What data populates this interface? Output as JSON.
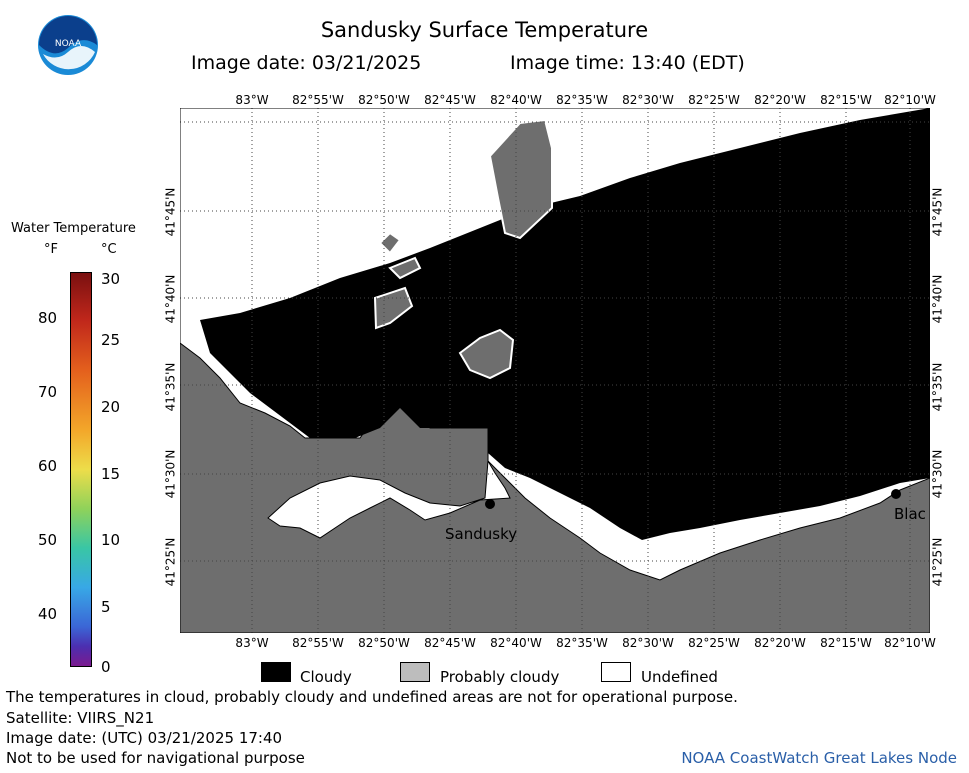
{
  "map": {
    "title": "Sandusky Surface Temperature",
    "image_date_label": "Image date: 03/21/2025",
    "image_time_label": "Image time: 13:40 (EDT)",
    "longitude_ticks": [
      "83°W",
      "82°55'W",
      "82°50'W",
      "82°45'W",
      "82°40'W",
      "82°35'W",
      "82°30'W",
      "82°25'W",
      "82°20'W",
      "82°15'W",
      "82°10'W"
    ],
    "latitude_ticks": [
      "41°45'N",
      "41°40'N",
      "41°35'N",
      "41°30'N",
      "41°25'N"
    ],
    "places": [
      {
        "name": "Sandusky"
      },
      {
        "name": "Blac"
      }
    ],
    "colors": {
      "cloudy": "#000000",
      "probably_cloudy": "#6e6e6e",
      "undefined": "#ffffff",
      "land": "#6e6e6e"
    }
  },
  "colorbar": {
    "title": "Water Temperature",
    "unit_f": "°F",
    "unit_c": "°C",
    "f_ticks": [
      "80",
      "70",
      "60",
      "50",
      "40"
    ],
    "c_ticks": [
      "30",
      "25",
      "20",
      "15",
      "10",
      "5",
      "0"
    ],
    "range_c": [
      0,
      30
    ]
  },
  "key": {
    "cloudy": "Cloudy",
    "probably_cloudy": "Probably cloudy",
    "undefined": "Undefined"
  },
  "footer": {
    "disclaimer": "The temperatures in cloud, probably cloudy and undefined areas are not for operational purpose.",
    "satellite": "Satellite: VIIRS_N21",
    "utc_date": "Image date: (UTC) 03/21/2025  17:40",
    "navigation": "Not to be used for navigational purpose",
    "credit": "NOAA CoastWatch Great Lakes Node"
  }
}
